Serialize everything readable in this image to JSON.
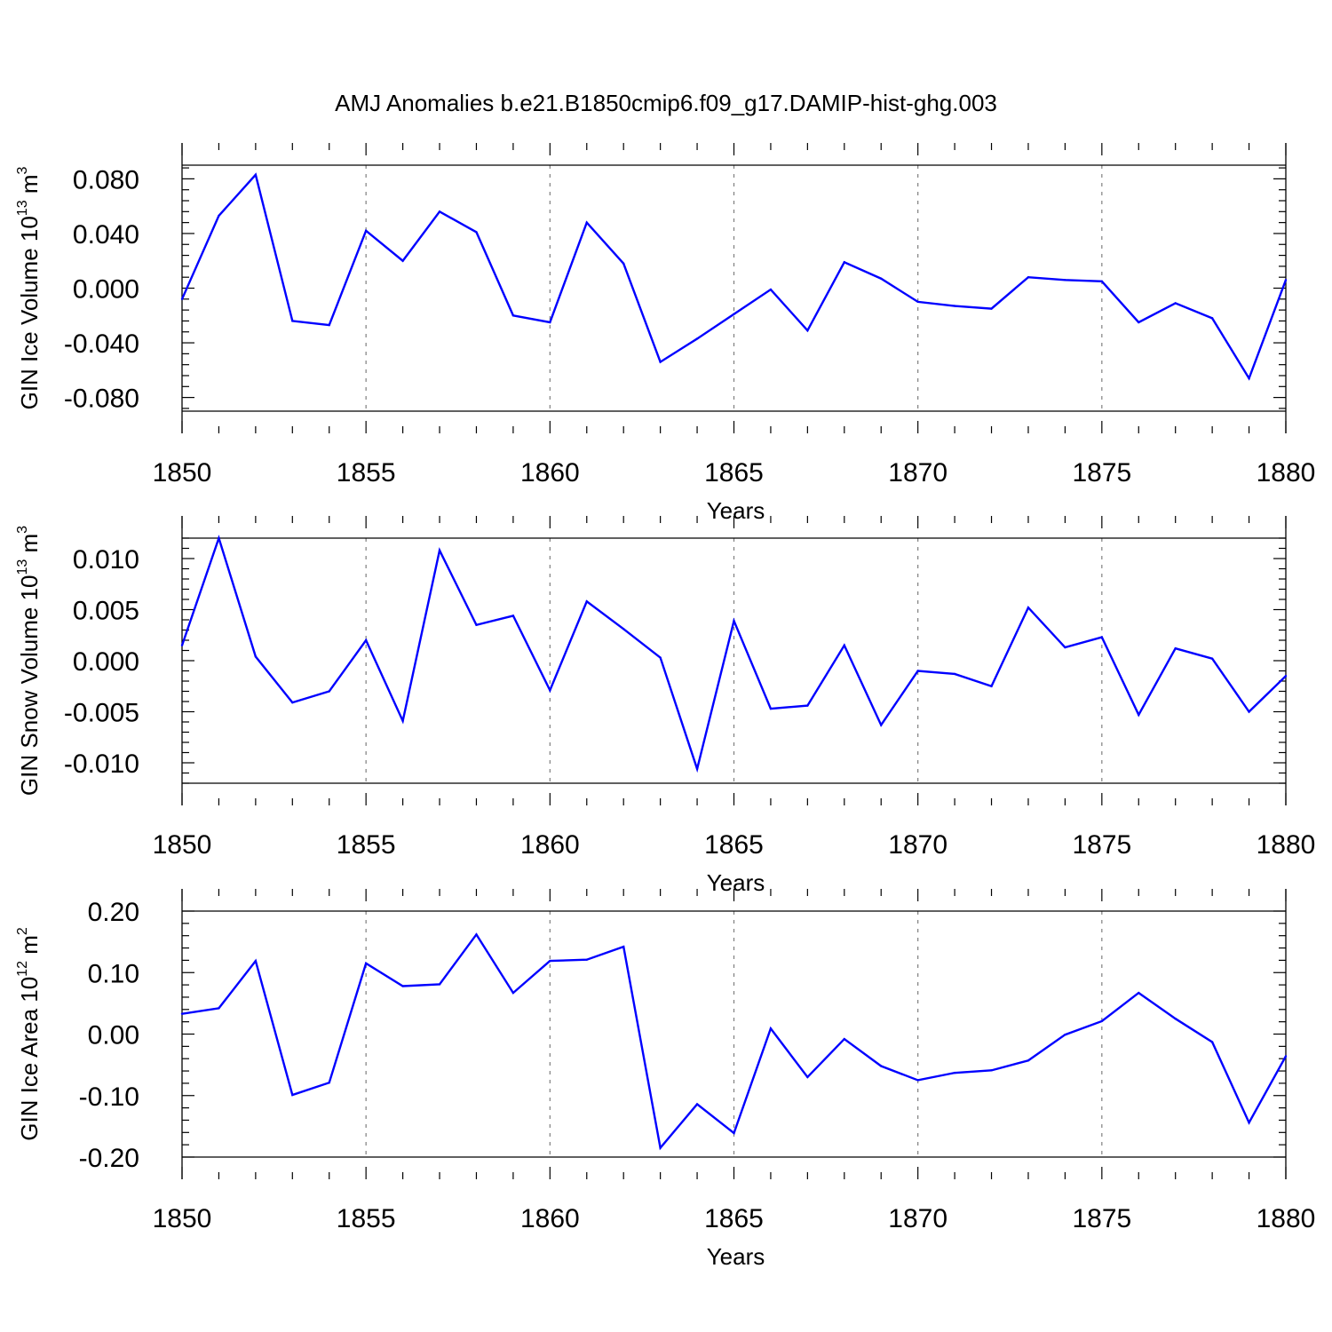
{
  "title": "AMJ Anomalies b.e21.B1850cmip6.f09_g17.DAMIP-hist-ghg.003",
  "colors": {
    "line": "#0000ff",
    "axis": "#000000",
    "grid": "#7f7f7f"
  },
  "chart_data": [
    {
      "type": "line",
      "ylabel": {
        "prefix": "GIN Ice Volume 10",
        "exp": "13",
        "unit": " m",
        "unit_exp": "3"
      },
      "xlabel": "Years",
      "xlim": [
        1850,
        1880
      ],
      "ylim": [
        -0.09,
        0.09
      ],
      "yticks": [
        -0.08,
        -0.04,
        0.0,
        0.04,
        0.08
      ],
      "ytick_labels": [
        "-0.080",
        "-0.040",
        "0.000",
        "0.040",
        "0.080"
      ],
      "xticks": [
        1850,
        1855,
        1860,
        1865,
        1870,
        1875,
        1880
      ],
      "xtick_labels": [
        "1850",
        "1855",
        "1860",
        "1865",
        "1870",
        "1875",
        "1880"
      ],
      "grid": "vertical dashed at major x ticks",
      "x": [
        1850,
        1851,
        1852,
        1853,
        1854,
        1855,
        1856,
        1857,
        1858,
        1859,
        1860,
        1861,
        1862,
        1863,
        1864,
        1865,
        1866,
        1867,
        1868,
        1869,
        1870,
        1871,
        1872,
        1873,
        1874,
        1875,
        1876,
        1877,
        1878,
        1879,
        1880
      ],
      "y": [
        -0.008,
        0.053,
        0.083,
        -0.024,
        -0.027,
        0.042,
        0.02,
        0.056,
        0.041,
        -0.02,
        -0.025,
        0.048,
        0.018,
        -0.054,
        -0.037,
        -0.019,
        -0.001,
        -0.031,
        0.019,
        0.007,
        -0.01,
        -0.013,
        -0.015,
        0.008,
        0.006,
        0.005,
        -0.025,
        -0.011,
        -0.022,
        -0.066,
        0.006
      ]
    },
    {
      "type": "line",
      "ylabel": {
        "prefix": "GIN Snow Volume 10",
        "exp": "13",
        "unit": " m",
        "unit_exp": "3"
      },
      "xlabel": "Years",
      "xlim": [
        1850,
        1880
      ],
      "ylim": [
        -0.012,
        0.012
      ],
      "yticks": [
        -0.01,
        -0.005,
        0.0,
        0.005,
        0.01
      ],
      "ytick_labels": [
        "-0.010",
        "-0.005",
        "0.000",
        "0.005",
        "0.010"
      ],
      "xticks": [
        1850,
        1855,
        1860,
        1865,
        1870,
        1875,
        1880
      ],
      "xtick_labels": [
        "1850",
        "1855",
        "1860",
        "1865",
        "1870",
        "1875",
        "1880"
      ],
      "grid": "vertical dashed at major x ticks",
      "x": [
        1850,
        1851,
        1852,
        1853,
        1854,
        1855,
        1856,
        1857,
        1858,
        1859,
        1860,
        1861,
        1862,
        1863,
        1864,
        1865,
        1866,
        1867,
        1868,
        1869,
        1870,
        1871,
        1872,
        1873,
        1874,
        1875,
        1876,
        1877,
        1878,
        1879,
        1880
      ],
      "y": [
        0.0015,
        0.012,
        0.0004,
        -0.0041,
        -0.003,
        0.002,
        -0.0059,
        0.0108,
        0.0035,
        0.0044,
        -0.0029,
        0.0058,
        0.0031,
        0.0003,
        -0.0106,
        0.0039,
        -0.0047,
        -0.0044,
        0.0015,
        -0.0063,
        -0.001,
        -0.0013,
        -0.0025,
        0.0052,
        0.0013,
        0.0023,
        -0.0053,
        0.0012,
        0.0002,
        -0.005,
        -0.0015
      ]
    },
    {
      "type": "line",
      "ylabel": {
        "prefix": "GIN Ice Area 10",
        "exp": "12",
        "unit": " m",
        "unit_exp": "2"
      },
      "xlabel": "Years",
      "xlim": [
        1850,
        1880
      ],
      "ylim": [
        -0.2,
        0.2
      ],
      "yticks": [
        -0.2,
        -0.1,
        0.0,
        0.1,
        0.2
      ],
      "ytick_labels": [
        "-0.20",
        "-0.10",
        "0.00",
        "0.10",
        "0.20"
      ],
      "xticks": [
        1850,
        1855,
        1860,
        1865,
        1870,
        1875,
        1880
      ],
      "xtick_labels": [
        "1850",
        "1855",
        "1860",
        "1865",
        "1870",
        "1875",
        "1880"
      ],
      "grid": "vertical dashed at major x ticks",
      "x": [
        1850,
        1851,
        1852,
        1853,
        1854,
        1855,
        1856,
        1857,
        1858,
        1859,
        1860,
        1861,
        1862,
        1863,
        1864,
        1865,
        1866,
        1867,
        1868,
        1869,
        1870,
        1871,
        1872,
        1873,
        1874,
        1875,
        1876,
        1877,
        1878,
        1879,
        1880
      ],
      "y": [
        0.033,
        0.042,
        0.119,
        -0.099,
        -0.079,
        0.115,
        0.078,
        0.081,
        0.162,
        0.067,
        0.119,
        0.121,
        0.142,
        -0.185,
        -0.114,
        -0.161,
        0.009,
        -0.07,
        -0.008,
        -0.052,
        -0.075,
        -0.063,
        -0.059,
        -0.043,
        -0.001,
        0.021,
        0.067,
        0.025,
        -0.013,
        -0.144,
        -0.036
      ]
    }
  ]
}
